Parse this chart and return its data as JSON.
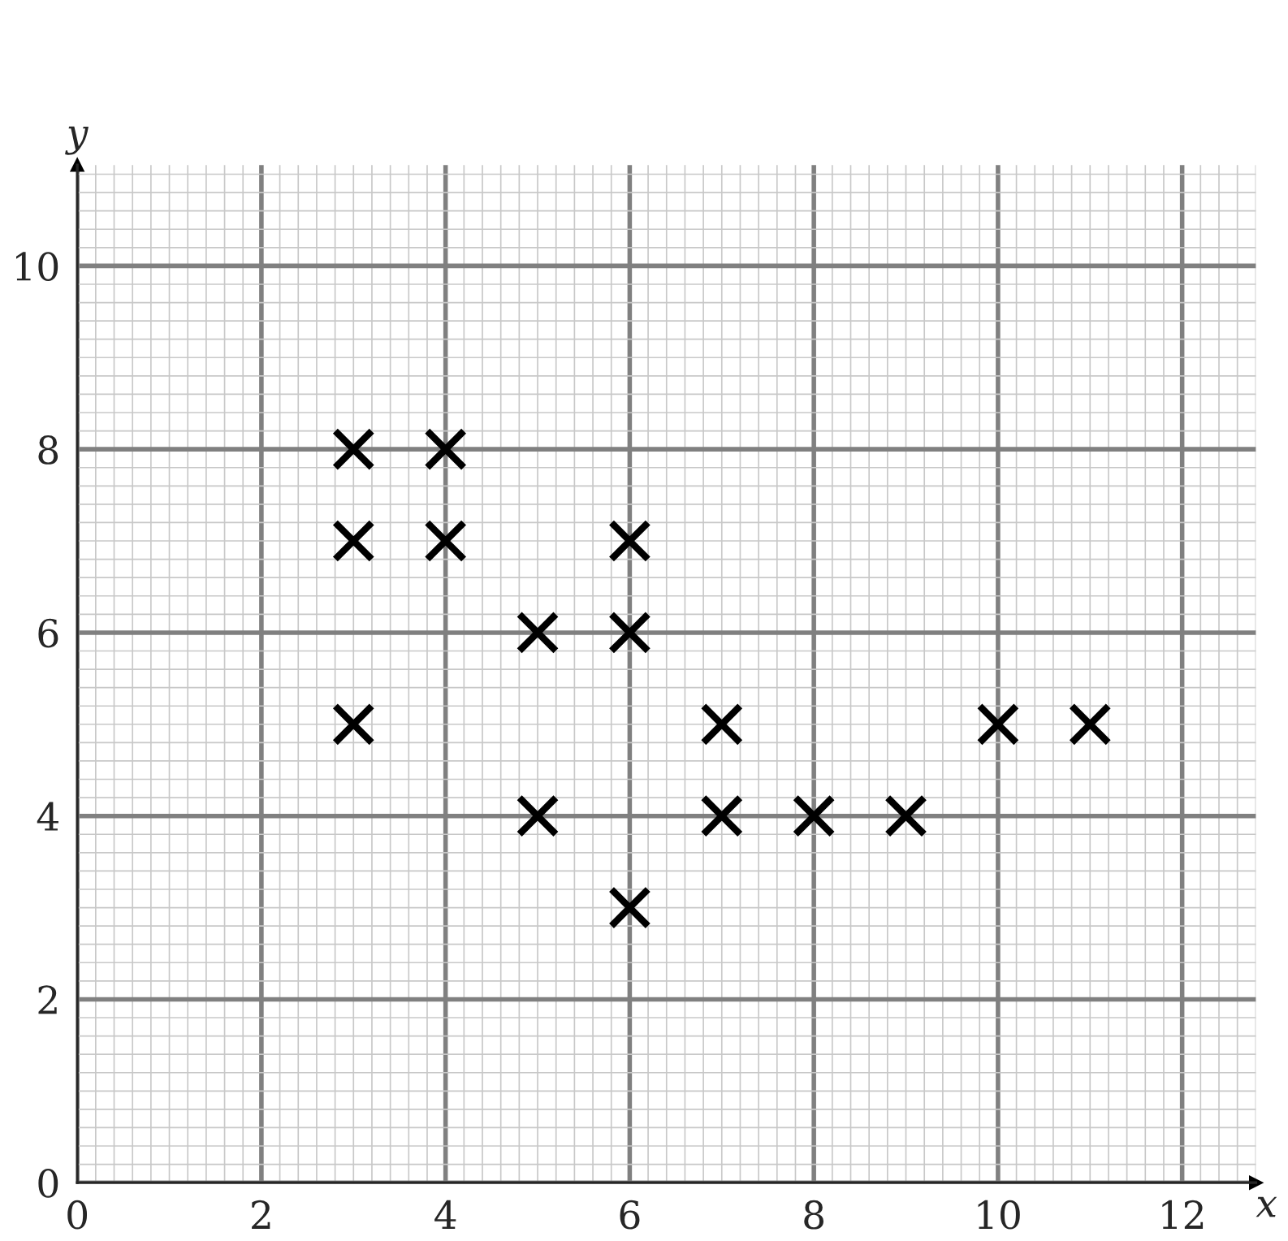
{
  "chart_data": {
    "type": "scatter",
    "xlabel": "x",
    "ylabel": "y",
    "x": [
      3,
      4,
      3,
      4,
      6,
      5,
      6,
      3,
      7,
      10,
      11,
      5,
      7,
      8,
      9,
      6
    ],
    "series": [
      {
        "color": "#000000",
        "values": [
          8,
          8,
          7,
          7,
          7,
          6,
          6,
          5,
          5,
          5,
          5,
          4,
          4,
          4,
          4,
          3
        ]
      }
    ],
    "xlim": [
      0,
      12.8
    ],
    "ylim": [
      0,
      11.1
    ],
    "xticks": [
      0,
      2,
      4,
      6,
      8,
      10,
      12
    ],
    "yticks": [
      0,
      2,
      4,
      6,
      8,
      10
    ],
    "grid": true,
    "marker": "cross"
  }
}
